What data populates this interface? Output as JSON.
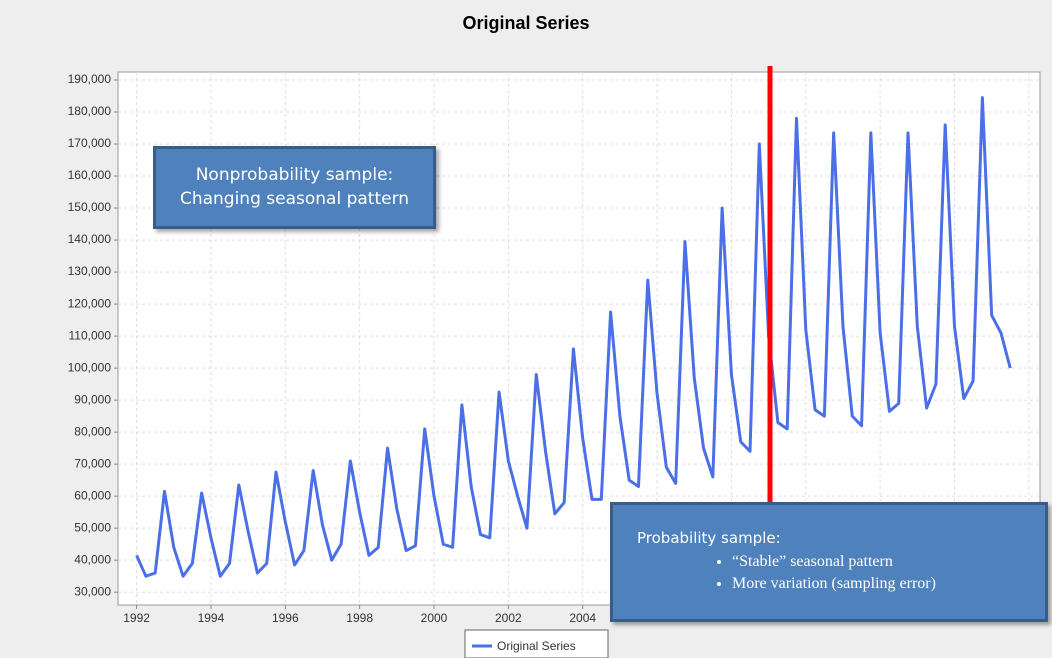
{
  "chart_data": {
    "type": "line",
    "title": "Original Series",
    "x": [
      1992,
      1992.25,
      1992.5,
      1992.75,
      1993,
      1993.25,
      1993.5,
      1993.75,
      1994,
      1994.25,
      1994.5,
      1994.75,
      1995,
      1995.25,
      1995.5,
      1995.75,
      1996,
      1996.25,
      1996.5,
      1996.75,
      1997,
      1997.25,
      1997.5,
      1997.75,
      1998,
      1998.25,
      1998.5,
      1998.75,
      1999,
      1999.25,
      1999.5,
      1999.75,
      2000,
      2000.25,
      2000.5,
      2000.75,
      2001,
      2001.25,
      2001.5,
      2001.75,
      2002,
      2002.25,
      2002.5,
      2002.75,
      2003,
      2003.25,
      2003.5,
      2003.75,
      2004,
      2004.25,
      2004.5,
      2004.75,
      2005,
      2005.25,
      2005.5,
      2005.75,
      2006,
      2006.25,
      2006.5,
      2006.75,
      2007,
      2007.25,
      2007.5,
      2007.75,
      2008,
      2008.25,
      2008.5,
      2008.75,
      2009,
      2009.25,
      2009.5,
      2009.75,
      2010,
      2010.25,
      2010.5,
      2010.75,
      2011,
      2011.25,
      2011.5,
      2011.75,
      2012,
      2012.25,
      2012.5,
      2012.75,
      2013,
      2013.25,
      2013.5,
      2013.75,
      2014,
      2014.25,
      2014.5,
      2014.75,
      2015,
      2015.25,
      2015.5
    ],
    "series": [
      {
        "name": "Original Series",
        "color": "#4b6fe6",
        "values": [
          41500,
          35000,
          36000,
          61500,
          44000,
          35000,
          39000,
          61000,
          47000,
          35000,
          39000,
          63500,
          49000,
          36000,
          39000,
          67500,
          52000,
          38500,
          43000,
          68000,
          51000,
          40000,
          45000,
          71000,
          55000,
          41500,
          44000,
          75000,
          56000,
          43000,
          44500,
          81000,
          60000,
          45000,
          44000,
          88500,
          63000,
          48000,
          47000,
          92500,
          71000,
          60000,
          50000,
          98000,
          74000,
          54500,
          58000,
          106000,
          78000,
          59000,
          59000,
          117500,
          85000,
          65000,
          63000,
          127500,
          92000,
          69000,
          64000,
          139500,
          97000,
          75000,
          66000,
          150000,
          98000,
          77000,
          74000,
          170000,
          110000,
          83000,
          81000,
          178000,
          112000,
          87000,
          85000,
          173500,
          113000,
          85000,
          82000,
          173500,
          111000,
          86500,
          89000,
          173500,
          113000,
          87500,
          95000,
          176000,
          113000,
          90500,
          96000,
          184500,
          116500,
          111000,
          100000
        ]
      }
    ],
    "xlim": [
      1991.5,
      2016.3
    ],
    "xticks": [
      1992,
      1994,
      1996,
      1998,
      2000,
      2002,
      2004,
      2006,
      2008,
      2010,
      2012,
      2014,
      2016
    ],
    "ylim": [
      26000,
      192500
    ],
    "yticks": [
      {
        "value": 30000,
        "label": "30,000"
      },
      {
        "value": 40000,
        "label": "40,000"
      },
      {
        "value": 50000,
        "label": "50,000"
      },
      {
        "value": 60000,
        "label": "60,000"
      },
      {
        "value": 70000,
        "label": "70,000"
      },
      {
        "value": 80000,
        "label": "80,000"
      },
      {
        "value": 90000,
        "label": "90,000"
      },
      {
        "value": 100000,
        "label": "100,000"
      },
      {
        "value": 110000,
        "label": "110,000"
      },
      {
        "value": 120000,
        "label": "120,000"
      },
      {
        "value": 130000,
        "label": "130,000"
      },
      {
        "value": 140000,
        "label": "140,000"
      },
      {
        "value": 150000,
        "label": "150,000"
      },
      {
        "value": 160000,
        "label": "160,000"
      },
      {
        "value": 170000,
        "label": "170,000"
      },
      {
        "value": 180000,
        "label": "180,000"
      },
      {
        "value": 190000,
        "label": "190,000"
      }
    ],
    "grid": true,
    "annotations": {
      "nonprobability": [
        "Nonprobability sample:",
        "Changing seasonal pattern"
      ],
      "probability": {
        "heading": "Probability sample:",
        "bullets": [
          "“Stable” seasonal pattern",
          "More variation (sampling error)"
        ]
      }
    }
  }
}
